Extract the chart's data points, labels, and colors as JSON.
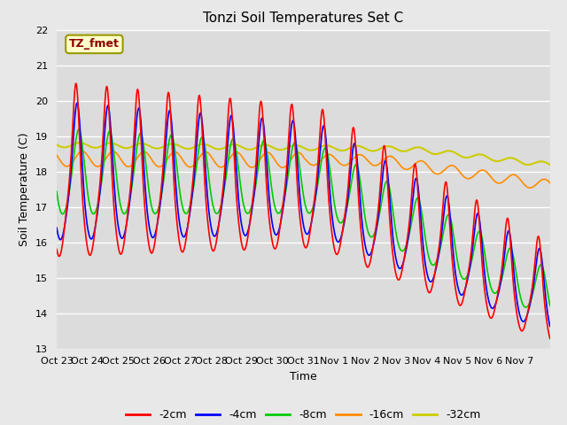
{
  "title": "Tonzi Soil Temperatures Set C",
  "xlabel": "Time",
  "ylabel": "Soil Temperature (C)",
  "ylim": [
    13.0,
    22.0
  ],
  "yticks": [
    13.0,
    14.0,
    15.0,
    16.0,
    17.0,
    18.0,
    19.0,
    20.0,
    21.0,
    22.0
  ],
  "xtick_labels": [
    "Oct 23",
    "Oct 24",
    "Oct 25",
    "Oct 26",
    "Oct 27",
    "Oct 28",
    "Oct 29",
    "Oct 30",
    "Oct 31",
    "Nov 1",
    "Nov 2",
    "Nov 3",
    "Nov 4",
    "Nov 5",
    "Nov 6",
    "Nov 7"
  ],
  "series_colors": [
    "#ff0000",
    "#0000ff",
    "#00cc00",
    "#ff8c00",
    "#cccc00"
  ],
  "series_labels": [
    "-2cm",
    "-4cm",
    "-8cm",
    "-16cm",
    "-32cm"
  ],
  "annotation_text": "TZ_fmet",
  "annotation_color": "#8b0000",
  "annotation_bg": "#ffffcc",
  "annotation_edge": "#999900",
  "bg_color": "#e8e8e8",
  "plot_bg": "#dcdcdc",
  "grid_color": "#ffffff",
  "title_fontsize": 11,
  "label_fontsize": 9,
  "tick_fontsize": 8,
  "n_days": 16,
  "samples_per_day": 96
}
